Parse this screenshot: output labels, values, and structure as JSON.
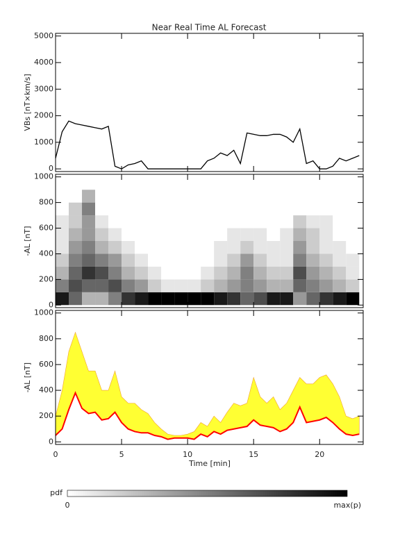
{
  "chart_data": [
    {
      "type": "line",
      "title": "Near Real Time AL Forecast",
      "ylabel": "VBs [nT×km/s]",
      "color": "#000000",
      "x": [
        0,
        0.5,
        1,
        1.5,
        2,
        2.5,
        3,
        3.5,
        4,
        4.5,
        5,
        5.5,
        6,
        6.5,
        7,
        7.5,
        8,
        8.5,
        9,
        9.5,
        10,
        10.5,
        11,
        11.5,
        12,
        12.5,
        13,
        13.5,
        14,
        14.5,
        15,
        15.5,
        16,
        16.5,
        17,
        17.5,
        18,
        18.5,
        19,
        19.5,
        20,
        20.5,
        21,
        21.5,
        22,
        22.5,
        23
      ],
      "values": [
        400,
        1400,
        1800,
        1700,
        1650,
        1600,
        1550,
        1500,
        1600,
        100,
        0,
        150,
        200,
        300,
        0,
        0,
        0,
        0,
        0,
        0,
        0,
        0,
        0,
        300,
        400,
        600,
        500,
        700,
        200,
        1350,
        1300,
        1250,
        1250,
        1300,
        1300,
        1200,
        1000,
        1500,
        200,
        300,
        0,
        0,
        100,
        400,
        300,
        400,
        500
      ],
      "xlim": [
        0,
        23.3
      ],
      "xticks": [
        0,
        5,
        10,
        15,
        20
      ],
      "ylim": [
        -100,
        5100
      ],
      "yticks": [
        0,
        1000,
        2000,
        3000,
        4000,
        5000
      ]
    },
    {
      "type": "heatmap",
      "ylabel": "-AL [nT]",
      "xbins": [
        0,
        1,
        2,
        3,
        4,
        5,
        6,
        7,
        8,
        9,
        10,
        11,
        12,
        13,
        14,
        15,
        16,
        17,
        18,
        19,
        20,
        21,
        22,
        23
      ],
      "ybins": [
        0,
        100,
        200,
        300,
        400,
        500,
        600,
        700,
        800,
        900,
        1000
      ],
      "z": [
        [
          0.9,
          0.6,
          0.3,
          0.3,
          0.5,
          0.8,
          0.9,
          1,
          1,
          1,
          1,
          1,
          0.9,
          0.8,
          0.6,
          0.7,
          0.9,
          0.9,
          0.4,
          0.6,
          0.8,
          0.9,
          1
        ],
        [
          0.5,
          0.7,
          0.6,
          0.6,
          0.7,
          0.5,
          0.4,
          0.2,
          0.1,
          0.1,
          0.1,
          0.2,
          0.3,
          0.4,
          0.5,
          0.4,
          0.3,
          0.3,
          0.6,
          0.5,
          0.4,
          0.3,
          0.2
        ],
        [
          0.3,
          0.6,
          0.8,
          0.7,
          0.5,
          0.3,
          0.2,
          0.1,
          0,
          0,
          0,
          0.1,
          0.2,
          0.3,
          0.5,
          0.3,
          0.2,
          0.2,
          0.7,
          0.4,
          0.3,
          0.2,
          0.1
        ],
        [
          0.2,
          0.5,
          0.6,
          0.5,
          0.4,
          0.2,
          0.1,
          0,
          0,
          0,
          0,
          0,
          0.1,
          0.2,
          0.4,
          0.2,
          0.1,
          0.1,
          0.5,
          0.3,
          0.2,
          0.1,
          0.1
        ],
        [
          0.1,
          0.4,
          0.5,
          0.3,
          0.2,
          0.1,
          0,
          0,
          0,
          0,
          0,
          0,
          0.1,
          0.1,
          0.2,
          0.1,
          0.1,
          0.1,
          0.4,
          0.2,
          0.1,
          0.1,
          0
        ],
        [
          0.1,
          0.3,
          0.4,
          0.2,
          0.1,
          0,
          0,
          0,
          0,
          0,
          0,
          0,
          0,
          0.1,
          0.1,
          0.1,
          0,
          0.1,
          0.3,
          0.2,
          0.1,
          0,
          0
        ],
        [
          0.1,
          0.2,
          0.4,
          0.1,
          0,
          0,
          0,
          0,
          0,
          0,
          0,
          0,
          0,
          0,
          0,
          0,
          0,
          0,
          0.2,
          0.1,
          0.1,
          0,
          0
        ],
        [
          0,
          0.2,
          0.5,
          0,
          0,
          0,
          0,
          0,
          0,
          0,
          0,
          0,
          0,
          0,
          0,
          0,
          0,
          0,
          0,
          0,
          0,
          0,
          0
        ],
        [
          0,
          0,
          0.3,
          0,
          0,
          0,
          0,
          0,
          0,
          0,
          0,
          0,
          0,
          0,
          0,
          0,
          0,
          0,
          0,
          0,
          0,
          0,
          0
        ],
        [
          0,
          0,
          0,
          0,
          0,
          0,
          0,
          0,
          0,
          0,
          0,
          0,
          0,
          0,
          0,
          0,
          0,
          0,
          0,
          0,
          0,
          0,
          0
        ]
      ],
      "zmax": 1,
      "colorbar": {
        "label": "pdf",
        "min_label": "0",
        "max_label": "max(p)"
      },
      "xlim": [
        0,
        23.3
      ],
      "xticks": [
        0,
        5,
        10,
        15,
        20
      ],
      "ylim": [
        -20,
        1020
      ],
      "yticks": [
        0,
        200,
        400,
        600,
        800,
        1000
      ]
    },
    {
      "type": "band",
      "ylabel": "-AL [nT]",
      "xlabel": "Time [min]",
      "color": "#ff0000",
      "band_color": "#ffff33",
      "x": [
        0,
        0.5,
        1,
        1.5,
        2,
        2.5,
        3,
        3.5,
        4,
        4.5,
        5,
        5.5,
        6,
        6.5,
        7,
        7.5,
        8,
        8.5,
        9,
        9.5,
        10,
        10.5,
        11,
        11.5,
        12,
        12.5,
        13,
        13.5,
        14,
        14.5,
        15,
        15.5,
        16,
        16.5,
        17,
        17.5,
        18,
        18.5,
        19,
        19.5,
        20,
        20.5,
        21,
        21.5,
        22,
        22.5,
        23
      ],
      "values": [
        50,
        100,
        250,
        380,
        260,
        220,
        230,
        170,
        180,
        230,
        150,
        100,
        80,
        70,
        70,
        50,
        40,
        20,
        30,
        30,
        30,
        20,
        60,
        40,
        80,
        60,
        90,
        100,
        110,
        120,
        170,
        130,
        120,
        110,
        80,
        100,
        150,
        270,
        150,
        160,
        170,
        190,
        150,
        100,
        60,
        50,
        60
      ],
      "upper": [
        200,
        400,
        700,
        850,
        700,
        550,
        550,
        400,
        400,
        550,
        350,
        300,
        300,
        250,
        220,
        150,
        100,
        60,
        50,
        50,
        60,
        80,
        150,
        120,
        200,
        150,
        230,
        300,
        280,
        300,
        500,
        350,
        300,
        350,
        250,
        300,
        400,
        500,
        450,
        450,
        500,
        520,
        450,
        350,
        200,
        180,
        200
      ],
      "xlim": [
        0,
        23.3
      ],
      "xticks": [
        0,
        5,
        10,
        15,
        20
      ],
      "ylim": [
        -20,
        1020
      ],
      "yticks": [
        0,
        200,
        400,
        600,
        800,
        1000
      ]
    }
  ]
}
